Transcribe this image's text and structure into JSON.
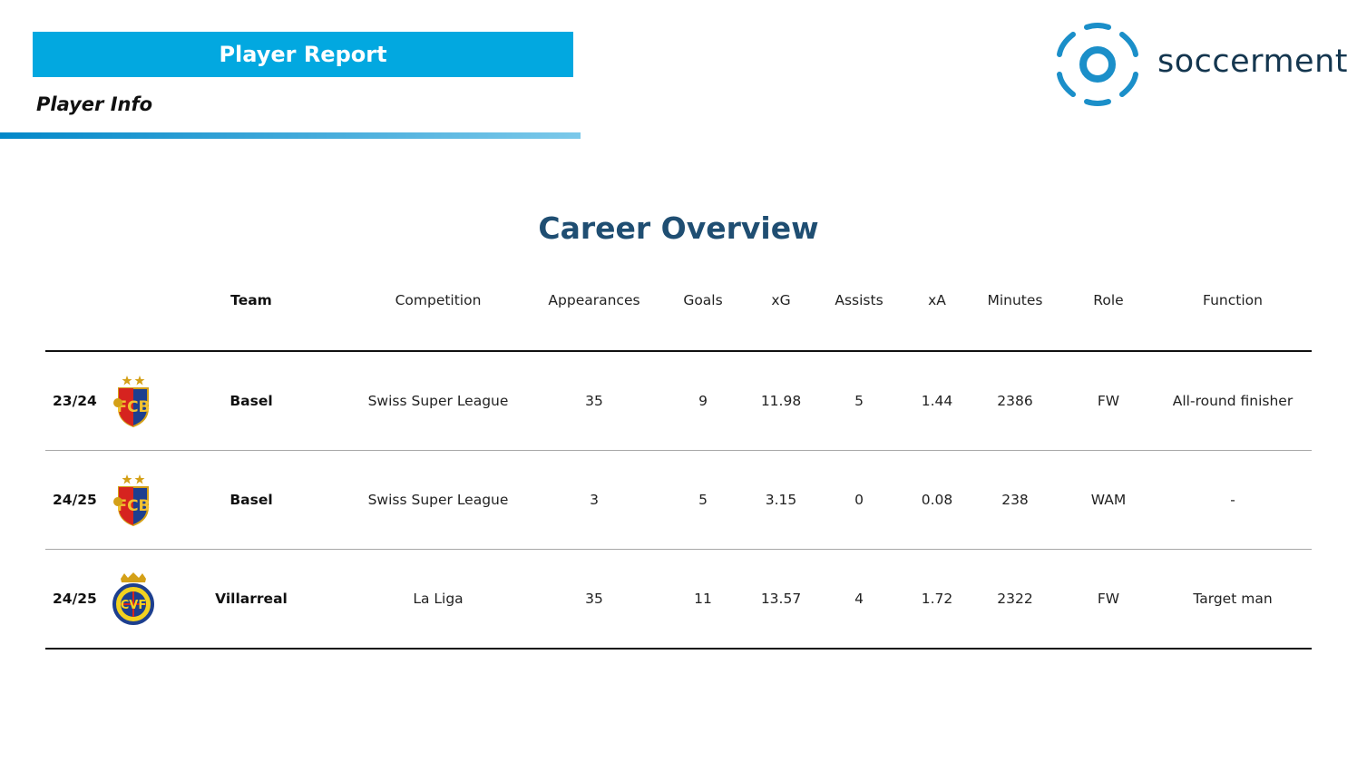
{
  "header": {
    "banner_title": "Player Report",
    "subtitle": "Player Info",
    "brand_name": "soccerment",
    "brand_color": "#1b8fc9",
    "banner_color": "#02a8e0"
  },
  "section": {
    "title": "Career Overview"
  },
  "table": {
    "columns": [
      "Team",
      "Competition",
      "Appearances",
      "Goals",
      "xG",
      "Assists",
      "xA",
      "Minutes",
      "Role",
      "Function"
    ],
    "rows": [
      {
        "season": "23/24",
        "crest": "basel-crest",
        "team": "Basel",
        "competition": "Swiss Super League",
        "appearances": "35",
        "goals": "9",
        "xg": "11.98",
        "assists": "5",
        "xa": "1.44",
        "minutes": "2386",
        "role": "FW",
        "function": "All-round finisher"
      },
      {
        "season": "24/25",
        "crest": "basel-crest",
        "team": "Basel",
        "competition": "Swiss Super League",
        "appearances": "3",
        "goals": "5",
        "xg": "3.15",
        "assists": "0",
        "xa": "0.08",
        "minutes": "238",
        "role": "WAM",
        "function": "-"
      },
      {
        "season": "24/25",
        "crest": "villarreal-crest",
        "team": "Villarreal",
        "competition": "La Liga",
        "appearances": "35",
        "goals": "11",
        "xg": "13.57",
        "assists": "4",
        "xa": "1.72",
        "minutes": "2322",
        "role": "FW",
        "function": "Target man"
      }
    ]
  }
}
